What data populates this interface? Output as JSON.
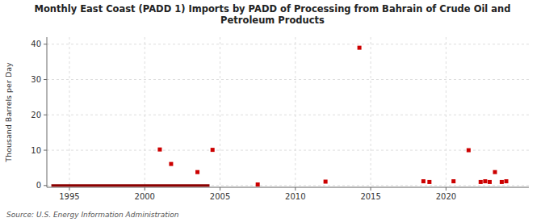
{
  "chart_data": {
    "type": "scatter",
    "title": "Monthly East Coast (PADD 1) Imports by PADD of Processing from Bahrain of Crude Oil and\nPetroleum Products",
    "ylabel": "Thousand Barrels per Day",
    "annotations": [
      "Source: U.S. Energy Information Administration"
    ],
    "xlim": [
      1993.5,
      2025.5
    ],
    "ylim": [
      -0.5,
      42
    ],
    "xticks": [
      1995,
      2000,
      2005,
      2010,
      2015,
      2020
    ],
    "yticks": [
      0,
      10,
      20,
      30,
      40
    ],
    "grid": true,
    "series": [
      {
        "type": "line",
        "color": "#8b0000",
        "x": [
          1993.8,
          2004.3
        ],
        "values": [
          0.0,
          0.0
        ]
      },
      {
        "type": "scatter",
        "color": "#cc0000",
        "marker": "square",
        "x": [
          2001.0,
          2001.75,
          2003.5,
          2004.5,
          2007.5,
          2012.0,
          2014.25,
          2018.5,
          2018.9,
          2020.5,
          2021.5,
          2022.3,
          2022.6,
          2022.9,
          2023.25,
          2023.7,
          2024.0
        ],
        "values": [
          10.2,
          6.1,
          3.8,
          10.1,
          0.3,
          1.1,
          39.0,
          1.2,
          1.0,
          1.2,
          10.0,
          1.0,
          1.2,
          1.0,
          3.8,
          1.0,
          1.2
        ]
      }
    ]
  }
}
